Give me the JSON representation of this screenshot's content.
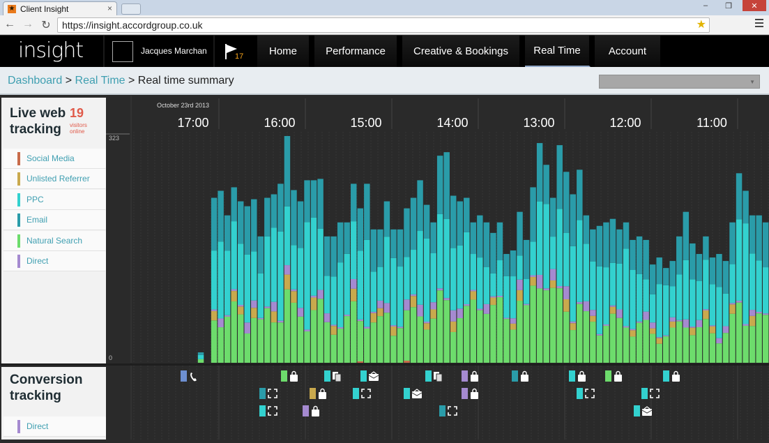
{
  "browser": {
    "tab_title": "Client Insight",
    "url": "https://insight.accordgroup.co.uk"
  },
  "app": {
    "logo": "insight",
    "user_name": "Jacques Marchan",
    "notification_count": "17",
    "nav": [
      "Home",
      "Performance",
      "Creative & Bookings",
      "Real Time",
      "Account"
    ],
    "active_nav": "Real Time"
  },
  "breadcrumb": {
    "dashboard": "Dashboard",
    "sep": " > ",
    "realtime": "Real Time",
    "current": "Real time summary"
  },
  "live": {
    "title_line1": "Live web",
    "title_line2": "tracking",
    "visitors_count": "19",
    "visitors_label_1": "visitors",
    "visitors_label_2": "online",
    "legend": [
      {
        "label": "Social Media",
        "color": "#c86b4a"
      },
      {
        "label": "Unlisted Referrer",
        "color": "#c9a94d"
      },
      {
        "label": "PPC",
        "color": "#33d1cf"
      },
      {
        "label": "Email",
        "color": "#2a9ca9"
      },
      {
        "label": "Natural Search",
        "color": "#6ddc6c"
      },
      {
        "label": "Direct",
        "color": "#a58ad0"
      }
    ]
  },
  "conversion": {
    "title_line1": "Conversion",
    "title_line2": "tracking",
    "legend": [
      {
        "label": "Direct",
        "color": "#a58ad0"
      }
    ]
  },
  "chart_data": {
    "type": "bar",
    "date_label": "October 23rd 2013",
    "time_labels": [
      "17:00",
      "16:00",
      "15:00",
      "14:00",
      "13:00",
      "12:00",
      "11:00"
    ],
    "y_max": 323,
    "y_min": 0,
    "y_tick_labels": [
      "323",
      "0"
    ],
    "series_order": [
      "Natural Search",
      "Unlisted Referrer",
      "Direct",
      "PPC",
      "Email"
    ],
    "colors": {
      "Natural Search": "#6ddc6c",
      "Unlisted Referrer": "#c9a94d",
      "Direct": "#a58ad0",
      "PPC": "#33d1cf",
      "Email": "#2a9ca9",
      "Social Media": "#c86b4a"
    },
    "totals": [
      0,
      0,
      0,
      0,
      0,
      0,
      0,
      0,
      0,
      0,
      15,
      0,
      235,
      245,
      210,
      250,
      230,
      223,
      233,
      180,
      235,
      240,
      255,
      323,
      246,
      230,
      260,
      260,
      262,
      180,
      180,
      200,
      200,
      255,
      220,
      255,
      190,
      190,
      230,
      190,
      190,
      220,
      235,
      260,
      225,
      200,
      295,
      300,
      238,
      230,
      235,
      200,
      210,
      200,
      185,
      200,
      155,
      160,
      215,
      175,
      250,
      313,
      282,
      235,
      310,
      272,
      240,
      275,
      210,
      190,
      195,
      200,
      205,
      190,
      200,
      175,
      180,
      175,
      140,
      150,
      135,
      145,
      180,
      215,
      170,
      155,
      180,
      150,
      155,
      145,
      200,
      270,
      245,
      210,
      210,
      200
    ]
  }
}
